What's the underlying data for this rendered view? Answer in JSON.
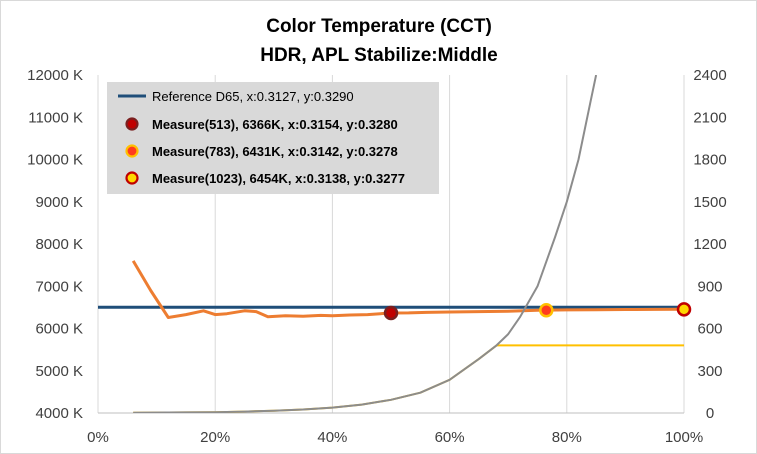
{
  "chart_data": {
    "type": "line",
    "title": "Color Temperature (CCT)",
    "subtitle": "HDR, APL Stabilize:Middle",
    "x_axis": {
      "min": 0,
      "max": 100,
      "step": 20,
      "tick_labels": [
        "0%",
        "20%",
        "40%",
        "60%",
        "80%",
        "100%"
      ]
    },
    "y_axis_left": {
      "min": 4000,
      "max": 12000,
      "step": 1000,
      "tick_labels": [
        "4000 K",
        "5000 K",
        "6000 K",
        "7000 K",
        "8000 K",
        "9000 K",
        "10000 K",
        "11000 K",
        "12000 K"
      ]
    },
    "y_axis_right": {
      "min": 0,
      "max": 2400,
      "step": 300,
      "tick_labels": [
        "0",
        "300",
        "600",
        "900",
        "1200",
        "1500",
        "1800",
        "2100",
        "2400"
      ]
    },
    "grid": "vertical",
    "legend_position": "top-left",
    "legend": [
      {
        "label": "Reference D65, x:0.3127, y:0.3290",
        "kind": "line",
        "color": "#1f4e79",
        "bold": false
      },
      {
        "label": "Measure(513), 6366K, x:0.3154, y:0.3280",
        "kind": "marker",
        "fill": "#c00000",
        "stroke": "#7a1f1f",
        "bold": true
      },
      {
        "label": "Measure(783), 6431K, x:0.3142, y:0.3278",
        "kind": "marker",
        "fill": "#ff3b1f",
        "stroke": "#ffc000",
        "bold": true
      },
      {
        "label": "Measure(1023), 6454K, x:0.3138, y:0.3277",
        "kind": "marker",
        "fill": "#ffd700",
        "stroke": "#c00000",
        "bold": true
      }
    ],
    "series": [
      {
        "axis": "left",
        "color": "#1f4e79",
        "x": [
          0,
          100
        ],
        "y": [
          6504,
          6504
        ]
      },
      {
        "axis": "left",
        "color": "#ed7d31",
        "x": [
          6,
          9,
          12,
          15,
          18,
          20,
          22,
          25,
          27,
          29,
          32,
          35,
          38,
          40,
          43,
          46,
          50,
          53,
          56,
          60,
          65,
          70,
          75,
          80,
          85,
          90,
          95,
          100
        ],
        "y": [
          7600,
          6900,
          6260,
          6330,
          6420,
          6330,
          6350,
          6420,
          6400,
          6280,
          6300,
          6290,
          6310,
          6300,
          6320,
          6330,
          6366,
          6370,
          6380,
          6390,
          6400,
          6410,
          6431,
          6440,
          6445,
          6450,
          6452,
          6454
        ]
      },
      {
        "axis": "right",
        "color": "#ffc000",
        "x": [
          6,
          15,
          20,
          25,
          30,
          35,
          40,
          45,
          50,
          55,
          60,
          65,
          68,
          70,
          75,
          80,
          85,
          90,
          95,
          100
        ],
        "y": [
          2,
          4,
          6,
          10,
          16,
          25,
          38,
          60,
          94,
          144,
          236,
          384,
          480,
          480,
          480,
          480,
          480,
          480,
          480,
          480
        ]
      },
      {
        "axis": "right",
        "color": "#8c8c8c",
        "x": [
          6,
          15,
          20,
          25,
          30,
          35,
          40,
          45,
          50,
          55,
          60,
          65,
          68,
          70,
          72,
          75,
          78,
          80,
          82,
          84,
          85
        ],
        "y": [
          2,
          4,
          6,
          10,
          16,
          25,
          38,
          60,
          94,
          144,
          236,
          384,
          480,
          560,
          680,
          900,
          1250,
          1500,
          1800,
          2200,
          2400
        ]
      }
    ],
    "points": [
      {
        "axis": "left",
        "x": 50,
        "y": 6366,
        "fill": "#c00000",
        "stroke": "#7a1f1f"
      },
      {
        "axis": "left",
        "x": 76.5,
        "y": 6431,
        "fill": "#ff3b1f",
        "stroke": "#ffc000"
      },
      {
        "axis": "left",
        "x": 100,
        "y": 6454,
        "fill": "#ffd700",
        "stroke": "#c00000"
      }
    ]
  }
}
